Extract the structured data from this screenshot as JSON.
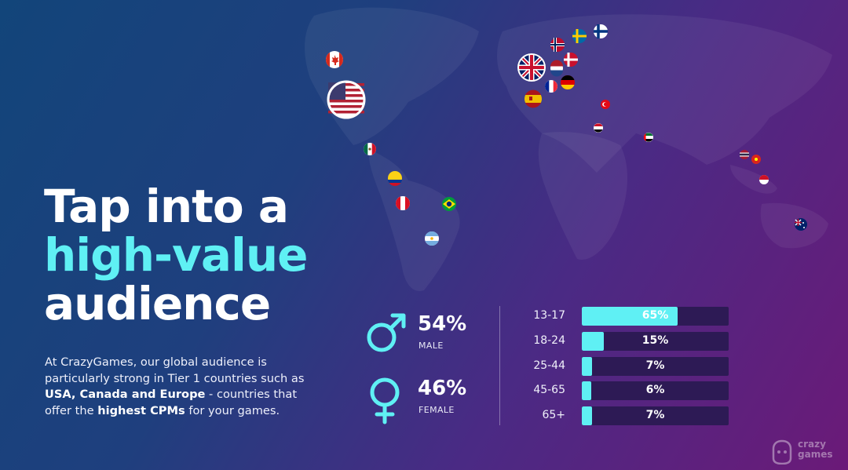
{
  "headline": {
    "line1": "Tap into a",
    "line2": "high-value",
    "line3": "audience"
  },
  "description": {
    "part1": "At CrazyGames, our global audience is particularly strong in Tier 1 countries such as ",
    "bold1": "USA, Canada and Europe",
    "part2": " - countries that offer the ",
    "bold2": "highest CPMs",
    "part3": " for your games."
  },
  "gender": {
    "male": {
      "percent": "54%",
      "label": "MALE",
      "icon": "male-symbol-icon"
    },
    "female": {
      "percent": "46%",
      "label": "FEMALE",
      "icon": "female-symbol-icon"
    }
  },
  "age_groups": [
    {
      "label": "13-17",
      "value_text": "65%",
      "fraction": 0.65
    },
    {
      "label": "18-24",
      "value_text": "15%",
      "fraction": 0.15
    },
    {
      "label": "25-44",
      "value_text": "7%",
      "fraction": 0.07
    },
    {
      "label": "45-65",
      "value_text": "6%",
      "fraction": 0.06
    },
    {
      "label": "65+",
      "value_text": "7%",
      "fraction": 0.07
    }
  ],
  "flags": [
    "canada",
    "usa",
    "mexico",
    "colombia",
    "peru",
    "brazil",
    "argentina",
    "uk",
    "norway",
    "sweden",
    "finland",
    "denmark",
    "netherlands",
    "germany",
    "france",
    "spain",
    "turkey",
    "egypt",
    "uae",
    "thailand",
    "vietnam",
    "indonesia",
    "australia"
  ],
  "logo": {
    "line1": "crazy",
    "line2": "games"
  },
  "colors": {
    "accent": "#5ff0f4",
    "bar_track": "#2d1a55"
  }
}
